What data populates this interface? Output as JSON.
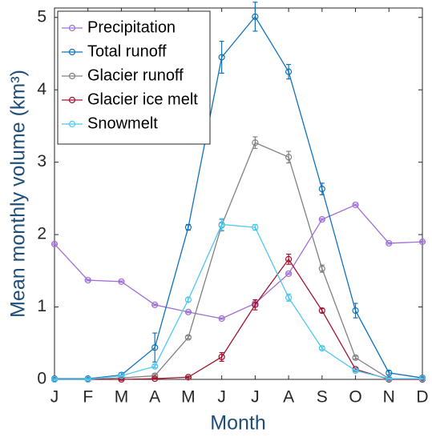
{
  "chart_data": {
    "type": "line",
    "xlabel": "Month",
    "ylabel": "Mean monthly volume (km³)",
    "categories": [
      "J",
      "F",
      "M",
      "A",
      "M",
      "J",
      "J",
      "A",
      "S",
      "O",
      "N",
      "D"
    ],
    "ylim": [
      0,
      5.13
    ],
    "yticks": [
      0,
      1,
      2,
      3,
      4,
      5
    ],
    "legend": "upper-left",
    "series": [
      {
        "name": "Precipitation",
        "color": "#a070d6",
        "values": [
          1.87,
          1.37,
          1.35,
          1.03,
          0.93,
          0.84,
          1.05,
          1.46,
          2.21,
          2.41,
          1.88,
          1.9
        ],
        "errors": [
          0.01,
          0.01,
          0.01,
          0.01,
          0.01,
          0.01,
          0.01,
          0.01,
          0.01,
          0.01,
          0.01,
          0.01
        ]
      },
      {
        "name": "Total runoff",
        "color": "#0f72bd",
        "values": [
          0.01,
          0.01,
          0.06,
          0.44,
          2.1,
          4.45,
          5.01,
          4.25,
          2.63,
          0.95,
          0.09,
          0.02
        ],
        "errors": [
          0.01,
          0.01,
          0.03,
          0.2,
          0.04,
          0.22,
          0.2,
          0.1,
          0.08,
          0.1,
          0.03,
          0.01
        ]
      },
      {
        "name": "Glacier runoff",
        "color": "#808080",
        "values": [
          0,
          0,
          0.02,
          0.05,
          0.58,
          2.13,
          3.27,
          3.07,
          1.53,
          0.3,
          0.01,
          0.01
        ],
        "errors": [
          0.01,
          0.01,
          0.01,
          0.02,
          0.02,
          0.08,
          0.08,
          0.08,
          0.05,
          0.02,
          0.01,
          0.01
        ]
      },
      {
        "name": "Glacier ice melt",
        "color": "#a2142f",
        "values": [
          0,
          0,
          0,
          0.01,
          0.03,
          0.31,
          1.03,
          1.66,
          0.95,
          0.14,
          0,
          0
        ],
        "errors": [
          0.01,
          0.01,
          0.01,
          0.01,
          0.01,
          0.06,
          0.07,
          0.07,
          0.03,
          0.02,
          0.01,
          0.01
        ]
      },
      {
        "name": "Snowmelt",
        "color": "#4dc8f0",
        "values": [
          0,
          0,
          0.05,
          0.18,
          1.1,
          2.14,
          2.1,
          1.13,
          0.43,
          0.12,
          0.01,
          0.01
        ],
        "errors": [
          0.01,
          0.01,
          0.01,
          0.02,
          0.03,
          0.08,
          0.04,
          0.05,
          0.02,
          0.01,
          0.01,
          0.01
        ]
      }
    ]
  }
}
